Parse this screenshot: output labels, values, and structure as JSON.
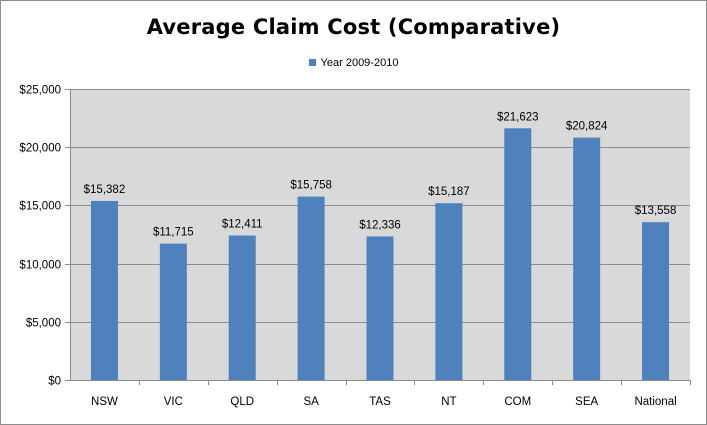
{
  "chart_data": {
    "type": "bar",
    "title": "Average Claim Cost (Comparative)",
    "categories": [
      "NSW",
      "VIC",
      "QLD",
      "SA",
      "TAS",
      "NT",
      "COM",
      "SEA",
      "National"
    ],
    "series": [
      {
        "name": "Year 2009-2010",
        "values": [
          15382,
          11715,
          12411,
          15758,
          12336,
          15187,
          21623,
          20824,
          13558
        ],
        "value_labels": [
          "$15,382",
          "$11,715",
          "$12,411",
          "$15,758",
          "$12,336",
          "$15,187",
          "$21,623",
          "$20,824",
          "$13,558"
        ]
      }
    ],
    "ylim": [
      0,
      25000
    ],
    "yticks": [
      0,
      5000,
      10000,
      15000,
      20000,
      25000
    ],
    "ytick_labels": [
      "$0",
      "$5,000",
      "$10,000",
      "$15,000",
      "$20,000",
      "$25,000"
    ],
    "xlabel": "",
    "ylabel": "",
    "legend_position": "top",
    "grid": true,
    "colors": {
      "bar": "#4f81bd",
      "plot_background": "#d9d9d9",
      "gridline": "#8c8c8c"
    }
  }
}
